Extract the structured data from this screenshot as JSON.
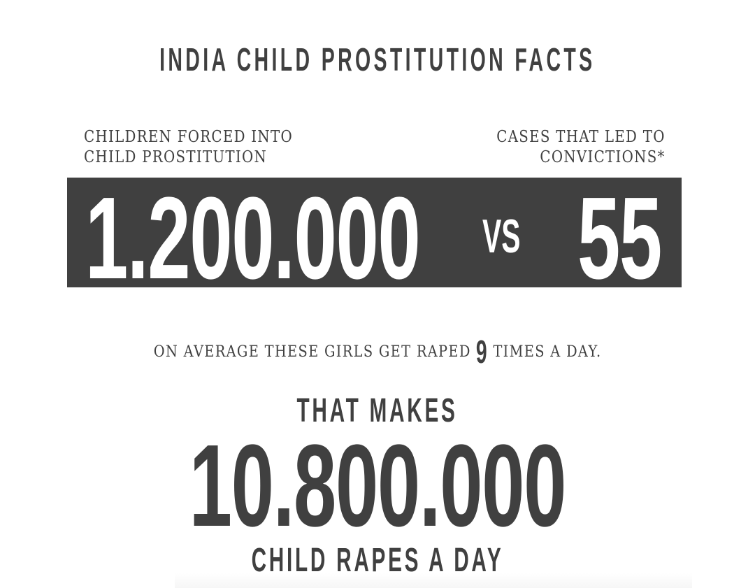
{
  "title": "INDIA CHILD PROSTITUTION FACTS",
  "comparison": {
    "left_label_line1": "CHILDREN FORCED INTO",
    "left_label_line2": "CHILD PROSTITUTION",
    "right_label_line1": "CASES THAT LED TO",
    "right_label_line2": "CONVICTIONS*",
    "left_value": "1.200.000",
    "vs": "VS",
    "right_value": "55"
  },
  "average": {
    "before": "ON AVERAGE THESE GIRLS GET RAPED",
    "number": "9",
    "after": "TIMES A DAY."
  },
  "result": {
    "intro": "THAT MAKES",
    "value": "10.800.000",
    "caption": "CHILD RAPES A DAY"
  },
  "colors": {
    "dark": "#404040",
    "background": "#ffffff",
    "text_on_dark": "#ffffff"
  }
}
